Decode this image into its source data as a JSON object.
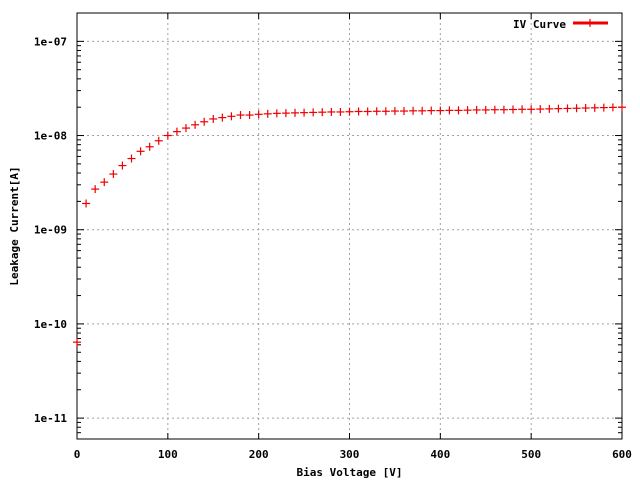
{
  "chart_data": {
    "type": "scatter",
    "title": "",
    "xlabel": "Bias Voltage [V]",
    "ylabel": "Leakage Current[A]",
    "xlim": [
      0,
      600
    ],
    "ylim": [
      6e-12,
      2e-07
    ],
    "y_scale": "log",
    "x_ticks": [
      0,
      100,
      200,
      300,
      400,
      500,
      600
    ],
    "x_tick_labels": [
      "0",
      "100",
      "200",
      "300",
      "400",
      "500",
      "600"
    ],
    "y_ticks": [
      1e-11,
      1e-10,
      1e-09,
      1e-08,
      1e-07
    ],
    "y_tick_labels": [
      "1e-11",
      "1e-10",
      "1e-09",
      "1e-08",
      "1e-07"
    ],
    "grid": true,
    "legend_position": "top-right",
    "series": [
      {
        "name": "IV Curve",
        "color": "#ee0000",
        "marker": "plus",
        "x": [
          0,
          10,
          20,
          30,
          40,
          50,
          60,
          70,
          80,
          90,
          100,
          110,
          120,
          130,
          140,
          150,
          160,
          170,
          180,
          190,
          200,
          210,
          220,
          230,
          240,
          250,
          260,
          270,
          280,
          290,
          300,
          310,
          320,
          330,
          340,
          350,
          360,
          370,
          380,
          390,
          400,
          410,
          420,
          430,
          440,
          450,
          460,
          470,
          480,
          490,
          500,
          510,
          520,
          530,
          540,
          550,
          560,
          570,
          580,
          590,
          600
        ],
        "y": [
          6.4e-11,
          1.9e-09,
          2.7e-09,
          3.2e-09,
          3.9e-09,
          4.8e-09,
          5.7e-09,
          6.8e-09,
          7.6e-09,
          8.8e-09,
          1e-08,
          1.1e-08,
          1.2e-08,
          1.3e-08,
          1.4e-08,
          1.5e-08,
          1.55e-08,
          1.6e-08,
          1.65e-08,
          1.65e-08,
          1.68e-08,
          1.7e-08,
          1.72e-08,
          1.73e-08,
          1.74e-08,
          1.75e-08,
          1.76e-08,
          1.77e-08,
          1.78e-08,
          1.78e-08,
          1.79e-08,
          1.8e-08,
          1.8e-08,
          1.81e-08,
          1.81e-08,
          1.82e-08,
          1.82e-08,
          1.83e-08,
          1.83e-08,
          1.84e-08,
          1.84e-08,
          1.85e-08,
          1.85e-08,
          1.86e-08,
          1.87e-08,
          1.87e-08,
          1.88e-08,
          1.88e-08,
          1.89e-08,
          1.9e-08,
          1.9e-08,
          1.91e-08,
          1.92e-08,
          1.93e-08,
          1.94e-08,
          1.95e-08,
          1.96e-08,
          1.97e-08,
          1.98e-08,
          1.99e-08,
          2e-08
        ]
      }
    ]
  }
}
